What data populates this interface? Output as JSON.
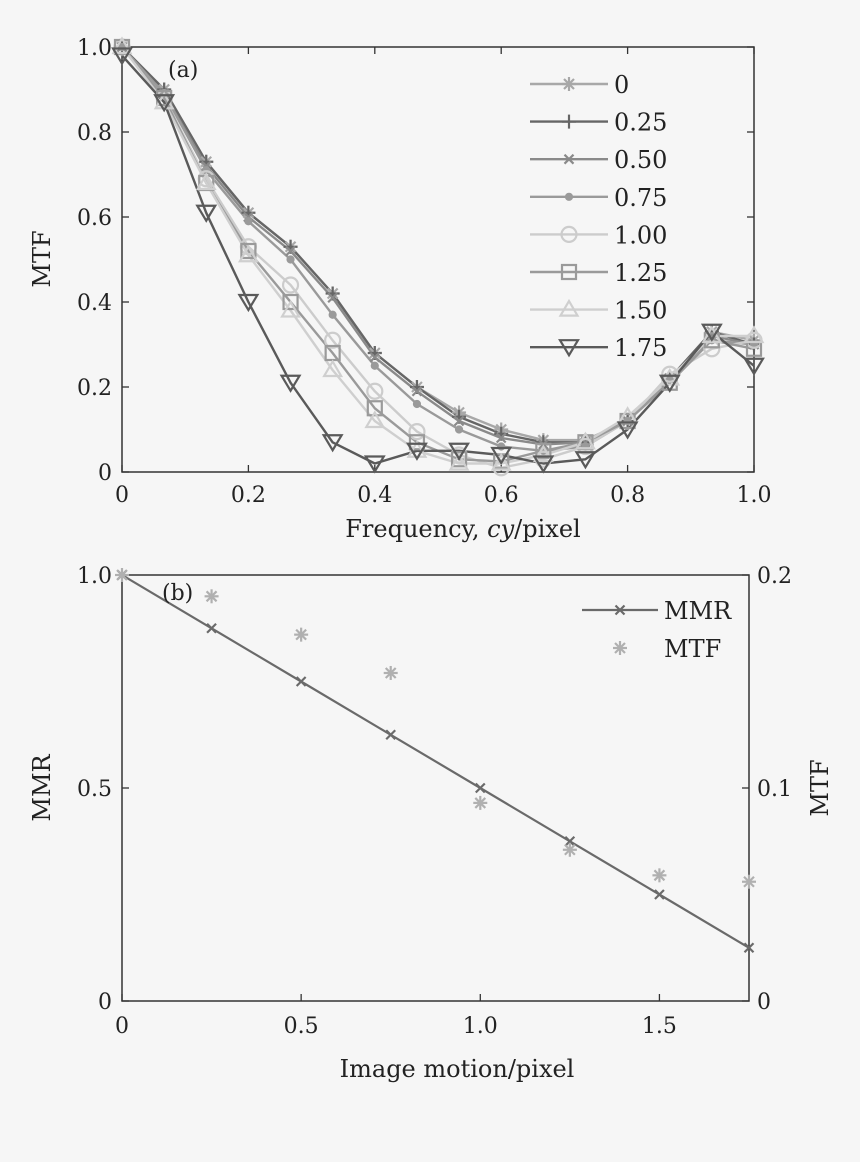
{
  "chart_data": [
    {
      "type": "line",
      "panel_label": "(a)",
      "xlabel_prefix": "Frequency, ",
      "xlabel_italic": "cy",
      "xlabel_suffix": "/pixel",
      "ylabel": "MTF",
      "xlim": [
        0,
        1.0
      ],
      "ylim": [
        0,
        1.0
      ],
      "xticks": [
        {
          "v": 0,
          "label": "0"
        },
        {
          "v": 0.2,
          "label": "0.2"
        },
        {
          "v": 0.4,
          "label": "0.4"
        },
        {
          "v": 0.6,
          "label": "0.6"
        },
        {
          "v": 0.8,
          "label": "0.8"
        },
        {
          "v": 1.0,
          "label": "1.0"
        }
      ],
      "yticks": [
        {
          "v": 0,
          "label": "0"
        },
        {
          "v": 0.2,
          "label": "0.2"
        },
        {
          "v": 0.4,
          "label": "0.4"
        },
        {
          "v": 0.6,
          "label": "0.6"
        },
        {
          "v": 0.8,
          "label": "0.8"
        },
        {
          "v": 1.0,
          "label": "1.0"
        }
      ],
      "legend_position": "top-right",
      "x": [
        0,
        0.0667,
        0.1333,
        0.2,
        0.2667,
        0.3333,
        0.4,
        0.4667,
        0.5333,
        0.6,
        0.6667,
        0.7333,
        0.8,
        0.8667,
        0.9333,
        1.0
      ],
      "series": [
        {
          "name": "0",
          "marker": "star",
          "color": "#a8a8a8",
          "values": [
            1.0,
            0.9,
            0.73,
            0.61,
            0.53,
            0.42,
            0.28,
            0.2,
            0.14,
            0.1,
            0.075,
            0.075,
            0.12,
            0.22,
            0.33,
            0.31
          ]
        },
        {
          "name": "0.25",
          "marker": "plus",
          "color": "#666666",
          "values": [
            1.0,
            0.9,
            0.73,
            0.61,
            0.53,
            0.42,
            0.28,
            0.2,
            0.13,
            0.09,
            0.07,
            0.07,
            0.12,
            0.22,
            0.33,
            0.3
          ]
        },
        {
          "name": "0.50",
          "marker": "x",
          "color": "#8a8a8a",
          "values": [
            1.0,
            0.89,
            0.72,
            0.6,
            0.52,
            0.41,
            0.27,
            0.19,
            0.12,
            0.08,
            0.065,
            0.07,
            0.12,
            0.22,
            0.32,
            0.3
          ]
        },
        {
          "name": "0.75",
          "marker": "dot",
          "color": "#9a9a9a",
          "values": [
            1.0,
            0.89,
            0.71,
            0.59,
            0.5,
            0.37,
            0.25,
            0.16,
            0.1,
            0.06,
            0.05,
            0.06,
            0.12,
            0.22,
            0.31,
            0.3
          ]
        },
        {
          "name": "1.00",
          "marker": "circle",
          "color": "#cccccc",
          "values": [
            1.0,
            0.88,
            0.69,
            0.53,
            0.44,
            0.31,
            0.19,
            0.095,
            0.04,
            0.01,
            0.03,
            0.06,
            0.12,
            0.23,
            0.29,
            0.31
          ]
        },
        {
          "name": "1.25",
          "marker": "square",
          "color": "#9a9a9a",
          "values": [
            1.0,
            0.88,
            0.68,
            0.52,
            0.4,
            0.28,
            0.15,
            0.07,
            0.03,
            0.025,
            0.05,
            0.07,
            0.12,
            0.21,
            0.31,
            0.29
          ]
        },
        {
          "name": "1.50",
          "marker": "triangle",
          "color": "#cfcfcf",
          "values": [
            1.0,
            0.87,
            0.68,
            0.51,
            0.38,
            0.24,
            0.12,
            0.05,
            0.02,
            0.02,
            0.04,
            0.07,
            0.13,
            0.22,
            0.32,
            0.32
          ]
        },
        {
          "name": "1.75",
          "marker": "triangle-down",
          "color": "#5a5a5a",
          "values": [
            0.98,
            0.87,
            0.61,
            0.4,
            0.21,
            0.07,
            0.02,
            0.05,
            0.05,
            0.04,
            0.02,
            0.03,
            0.1,
            0.21,
            0.33,
            0.25
          ]
        }
      ]
    },
    {
      "type": "line",
      "panel_label": "(b)",
      "xlabel": "Image motion/pixel",
      "ylabel": "MMR",
      "ylabel_right": "MTF",
      "xlim": [
        0,
        1.75
      ],
      "ylim": [
        0,
        1.0
      ],
      "ylim_right": [
        0,
        0.2
      ],
      "xticks": [
        {
          "v": 0,
          "label": "0"
        },
        {
          "v": 0.5,
          "label": "0.5"
        },
        {
          "v": 1.0,
          "label": "1.0"
        },
        {
          "v": 1.5,
          "label": "1.5"
        }
      ],
      "yticks": [
        {
          "v": 0,
          "label": "0"
        },
        {
          "v": 0.5,
          "label": "0.5"
        },
        {
          "v": 1.0,
          "label": "1.0"
        }
      ],
      "yticks_right": [
        {
          "v": 0,
          "label": "0"
        },
        {
          "v": 0.1,
          "label": "0.1"
        },
        {
          "v": 0.2,
          "label": "0.2"
        }
      ],
      "legend_position": "top-right",
      "series": [
        {
          "name": "MMR",
          "axis": "left",
          "style": "line-x",
          "color": "#6a6a6a",
          "x": [
            0,
            0.25,
            0.5,
            0.75,
            1.0,
            1.25,
            1.5,
            1.75
          ],
          "values": [
            1.0,
            0.875,
            0.75,
            0.625,
            0.5,
            0.375,
            0.25,
            0.125
          ]
        },
        {
          "name": "MTF",
          "axis": "right",
          "style": "star",
          "color": "#b0b0b0",
          "x": [
            0,
            0.25,
            0.5,
            0.75,
            1.0,
            1.25,
            1.5,
            1.75
          ],
          "values": [
            0.2,
            0.19,
            0.172,
            0.154,
            0.093,
            0.071,
            0.059,
            0.056
          ]
        }
      ]
    }
  ]
}
